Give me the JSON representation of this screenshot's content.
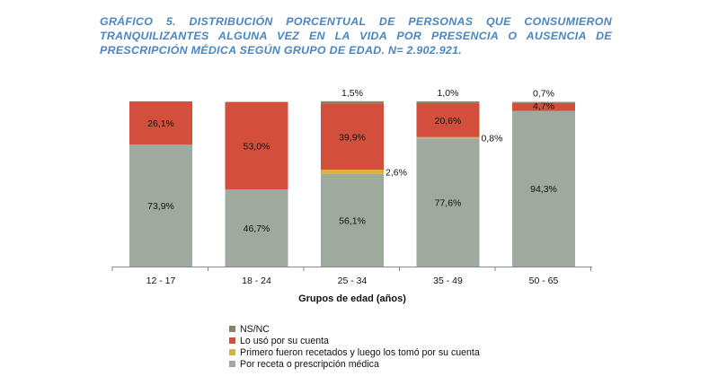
{
  "title_lines": [
    "GRÁFICO 5. DISTRIBUCIÓN PORCENTUAL DE PERSONAS QUE CONSUMIERON",
    "TRANQUILIZANTES ALGUNA VEZ EN LA VIDA POR PRESENCIA O AUSENCIA DE",
    "PRESCRIPCIÓN MÉDICA SEGÚN GRUPO DE EDAD. N= 2.902.921."
  ],
  "colors": {
    "title": "#4a86c0",
    "por_receta": "#9daa9d",
    "primero_recetados": "#d9b23c",
    "lo_uso": "#d24f3c",
    "nsnc": "#8a8166"
  },
  "chart_data": {
    "type": "bar",
    "stacked": true,
    "xlabel": "Grupos de edad (años)",
    "ylabel": "",
    "ylim": [
      0,
      100
    ],
    "grid": false,
    "legend_position": "bottom",
    "categories": [
      "12 - 17",
      "18 - 24",
      "25 - 34",
      "35 - 49",
      "50 - 65"
    ],
    "series": [
      {
        "key": "por_receta",
        "name": "Por receta o prescripción médica",
        "color": "#9daa9d",
        "values": [
          73.9,
          46.7,
          56.1,
          77.6,
          94.3
        ],
        "labels": [
          "73,9%",
          "46,7%",
          "56,1%",
          "77,6%",
          "94,3%"
        ]
      },
      {
        "key": "primero_recetados",
        "name": "Primero fueron recetados y luego los tomó por su cuenta",
        "color": "#d9b23c",
        "values": [
          0,
          0,
          2.6,
          0.8,
          0
        ],
        "labels": [
          "",
          "",
          "2,6%",
          "0,8%",
          ""
        ]
      },
      {
        "key": "lo_uso",
        "name": "Lo usó por su cuenta",
        "color": "#d24f3c",
        "values": [
          26.1,
          53.0,
          39.9,
          20.6,
          4.7
        ],
        "labels": [
          "26,1%",
          "53,0%",
          "39,9%",
          "20,6%",
          "4,7%"
        ]
      },
      {
        "key": "nsnc",
        "name": "NS/NC",
        "color": "#8a8166",
        "values": [
          0,
          0,
          1.5,
          1.0,
          0.7
        ],
        "labels": [
          "",
          "",
          "1,5%",
          "1,0%",
          "0,7%"
        ]
      }
    ],
    "legend_order": [
      "nsnc",
      "lo_uso",
      "primero_recetados",
      "por_receta"
    ]
  }
}
